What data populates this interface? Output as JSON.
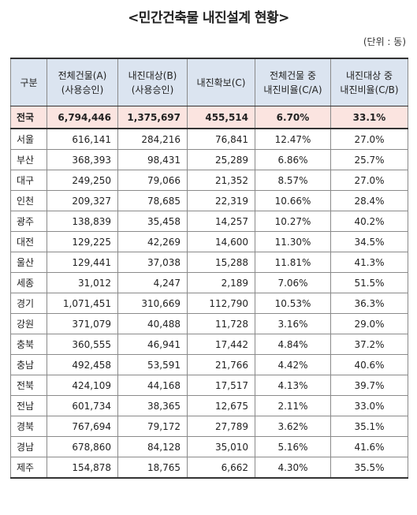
{
  "title": "<민간건축물 내진설계 현황>",
  "unit": "(단위 : 동)",
  "headers": [
    [
      "구분"
    ],
    [
      "전체건물(A)",
      "(사용승인)"
    ],
    [
      "내진대상(B)",
      "(사용승인)"
    ],
    [
      "내진확보(C)"
    ],
    [
      "전체건물 중",
      "내진비율(C/A)"
    ],
    [
      "내진대상 중",
      "내진비율(C/B)"
    ]
  ],
  "total": [
    "전국",
    "6,794,446",
    "1,375,697",
    "455,514",
    "6.70%",
    "33.1%"
  ],
  "rows": [
    [
      "서울",
      "616,141",
      "284,216",
      "76,841",
      "12.47%",
      "27.0%"
    ],
    [
      "부산",
      "368,393",
      "98,431",
      "25,289",
      "6.86%",
      "25.7%"
    ],
    [
      "대구",
      "249,250",
      "79,066",
      "21,352",
      "8.57%",
      "27.0%"
    ],
    [
      "인천",
      "209,327",
      "78,685",
      "22,319",
      "10.66%",
      "28.4%"
    ],
    [
      "광주",
      "138,839",
      "35,458",
      "14,257",
      "10.27%",
      "40.2%"
    ],
    [
      "대전",
      "129,225",
      "42,269",
      "14,600",
      "11.30%",
      "34.5%"
    ],
    [
      "울산",
      "129,441",
      "37,038",
      "15,288",
      "11.81%",
      "41.3%"
    ],
    [
      "세종",
      "31,012",
      "4,247",
      "2,189",
      "7.06%",
      "51.5%"
    ],
    [
      "경기",
      "1,071,451",
      "310,669",
      "112,790",
      "10.53%",
      "36.3%"
    ],
    [
      "강원",
      "371,079",
      "40,488",
      "11,728",
      "3.16%",
      "29.0%"
    ],
    [
      "충북",
      "360,555",
      "46,941",
      "17,442",
      "4.84%",
      "37.2%"
    ],
    [
      "충남",
      "492,458",
      "53,591",
      "21,766",
      "4.42%",
      "40.6%"
    ],
    [
      "전북",
      "424,109",
      "44,168",
      "17,517",
      "4.13%",
      "39.7%"
    ],
    [
      "전남",
      "601,734",
      "38,365",
      "12,675",
      "2.11%",
      "33.0%"
    ],
    [
      "경북",
      "767,694",
      "79,172",
      "27,789",
      "3.62%",
      "35.1%"
    ],
    [
      "경남",
      "678,860",
      "84,128",
      "35,010",
      "5.16%",
      "41.6%"
    ],
    [
      "제주",
      "154,878",
      "18,765",
      "6,662",
      "4.30%",
      "35.5%"
    ]
  ]
}
